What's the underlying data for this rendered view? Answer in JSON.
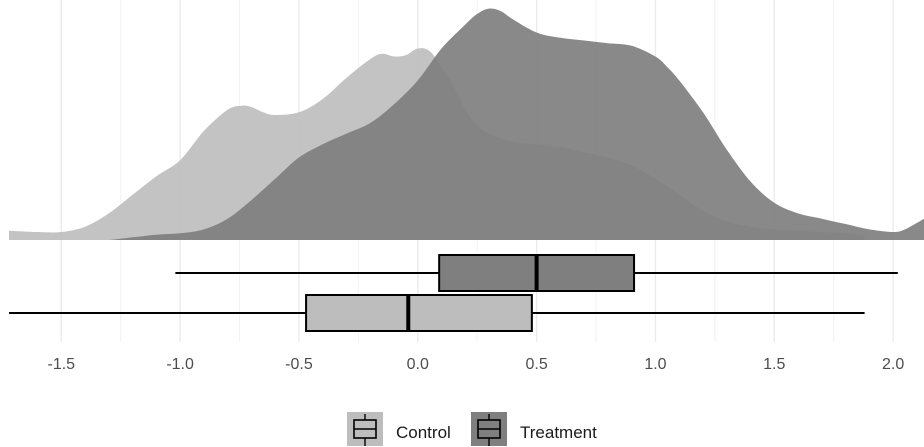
{
  "colors": {
    "control": "#bdbdbd",
    "treatment": "#7f7f7f",
    "grid": "#ebebeb",
    "line": "#000000"
  },
  "chart_data": {
    "type": "density_boxplot",
    "xlim": [
      -1.72,
      2.13
    ],
    "grid": true,
    "legend_position": "bottom",
    "x_ticks": [
      -1.5,
      -1.0,
      -0.5,
      0.0,
      0.5,
      1.0,
      1.5,
      2.0
    ],
    "x_tick_labels": [
      "-1.5",
      "-1.0",
      "-0.5",
      "0.0",
      "0.5",
      "1.0",
      "1.5",
      "2.0"
    ],
    "series": [
      {
        "name": "Control",
        "color": "#bdbdbd",
        "boxplot": {
          "min": -1.72,
          "q1": -0.47,
          "median": -0.04,
          "q3": 0.48,
          "max": 1.88
        },
        "density": {
          "x": [
            -1.72,
            -1.6,
            -1.5,
            -1.4,
            -1.3,
            -1.2,
            -1.1,
            -1.0,
            -0.9,
            -0.8,
            -0.74,
            -0.7,
            -0.65,
            -0.6,
            -0.5,
            -0.4,
            -0.3,
            -0.2,
            -0.15,
            -0.1,
            -0.05,
            0.0,
            0.05,
            0.1,
            0.15,
            0.2,
            0.25,
            0.3,
            0.4,
            0.5,
            0.6,
            0.7,
            0.8,
            0.9,
            1.0,
            1.1,
            1.2,
            1.3,
            1.4,
            1.5,
            1.6,
            1.7,
            1.8,
            1.88
          ],
          "y": [
            0.07,
            0.06,
            0.06,
            0.1,
            0.2,
            0.34,
            0.48,
            0.6,
            0.82,
            0.98,
            1.01,
            1.0,
            0.96,
            0.94,
            0.96,
            1.06,
            1.22,
            1.36,
            1.4,
            1.38,
            1.39,
            1.44,
            1.42,
            1.3,
            1.16,
            0.98,
            0.86,
            0.8,
            0.74,
            0.72,
            0.7,
            0.66,
            0.62,
            0.56,
            0.46,
            0.34,
            0.22,
            0.14,
            0.1,
            0.08,
            0.07,
            0.06,
            0.05,
            0.04
          ]
        }
      },
      {
        "name": "Treatment",
        "color": "#7f7f7f",
        "boxplot": {
          "min": -1.02,
          "q1": 0.09,
          "median": 0.5,
          "q3": 0.91,
          "max": 2.02
        },
        "density": {
          "x": [
            -1.3,
            -1.2,
            -1.1,
            -1.0,
            -0.9,
            -0.8,
            -0.7,
            -0.6,
            -0.5,
            -0.4,
            -0.3,
            -0.2,
            -0.1,
            0.0,
            0.1,
            0.2,
            0.25,
            0.3,
            0.35,
            0.4,
            0.5,
            0.6,
            0.7,
            0.8,
            0.9,
            1.0,
            1.05,
            1.1,
            1.2,
            1.3,
            1.4,
            1.5,
            1.6,
            1.7,
            1.8,
            1.9,
            2.0,
            2.05,
            2.13
          ],
          "y": [
            0.0,
            0.02,
            0.04,
            0.05,
            0.08,
            0.16,
            0.3,
            0.46,
            0.62,
            0.72,
            0.8,
            0.88,
            1.02,
            1.2,
            1.44,
            1.62,
            1.7,
            1.74,
            1.72,
            1.66,
            1.56,
            1.52,
            1.5,
            1.48,
            1.46,
            1.38,
            1.3,
            1.2,
            0.96,
            0.68,
            0.44,
            0.28,
            0.2,
            0.16,
            0.12,
            0.08,
            0.06,
            0.08,
            0.16
          ]
        }
      }
    ]
  }
}
